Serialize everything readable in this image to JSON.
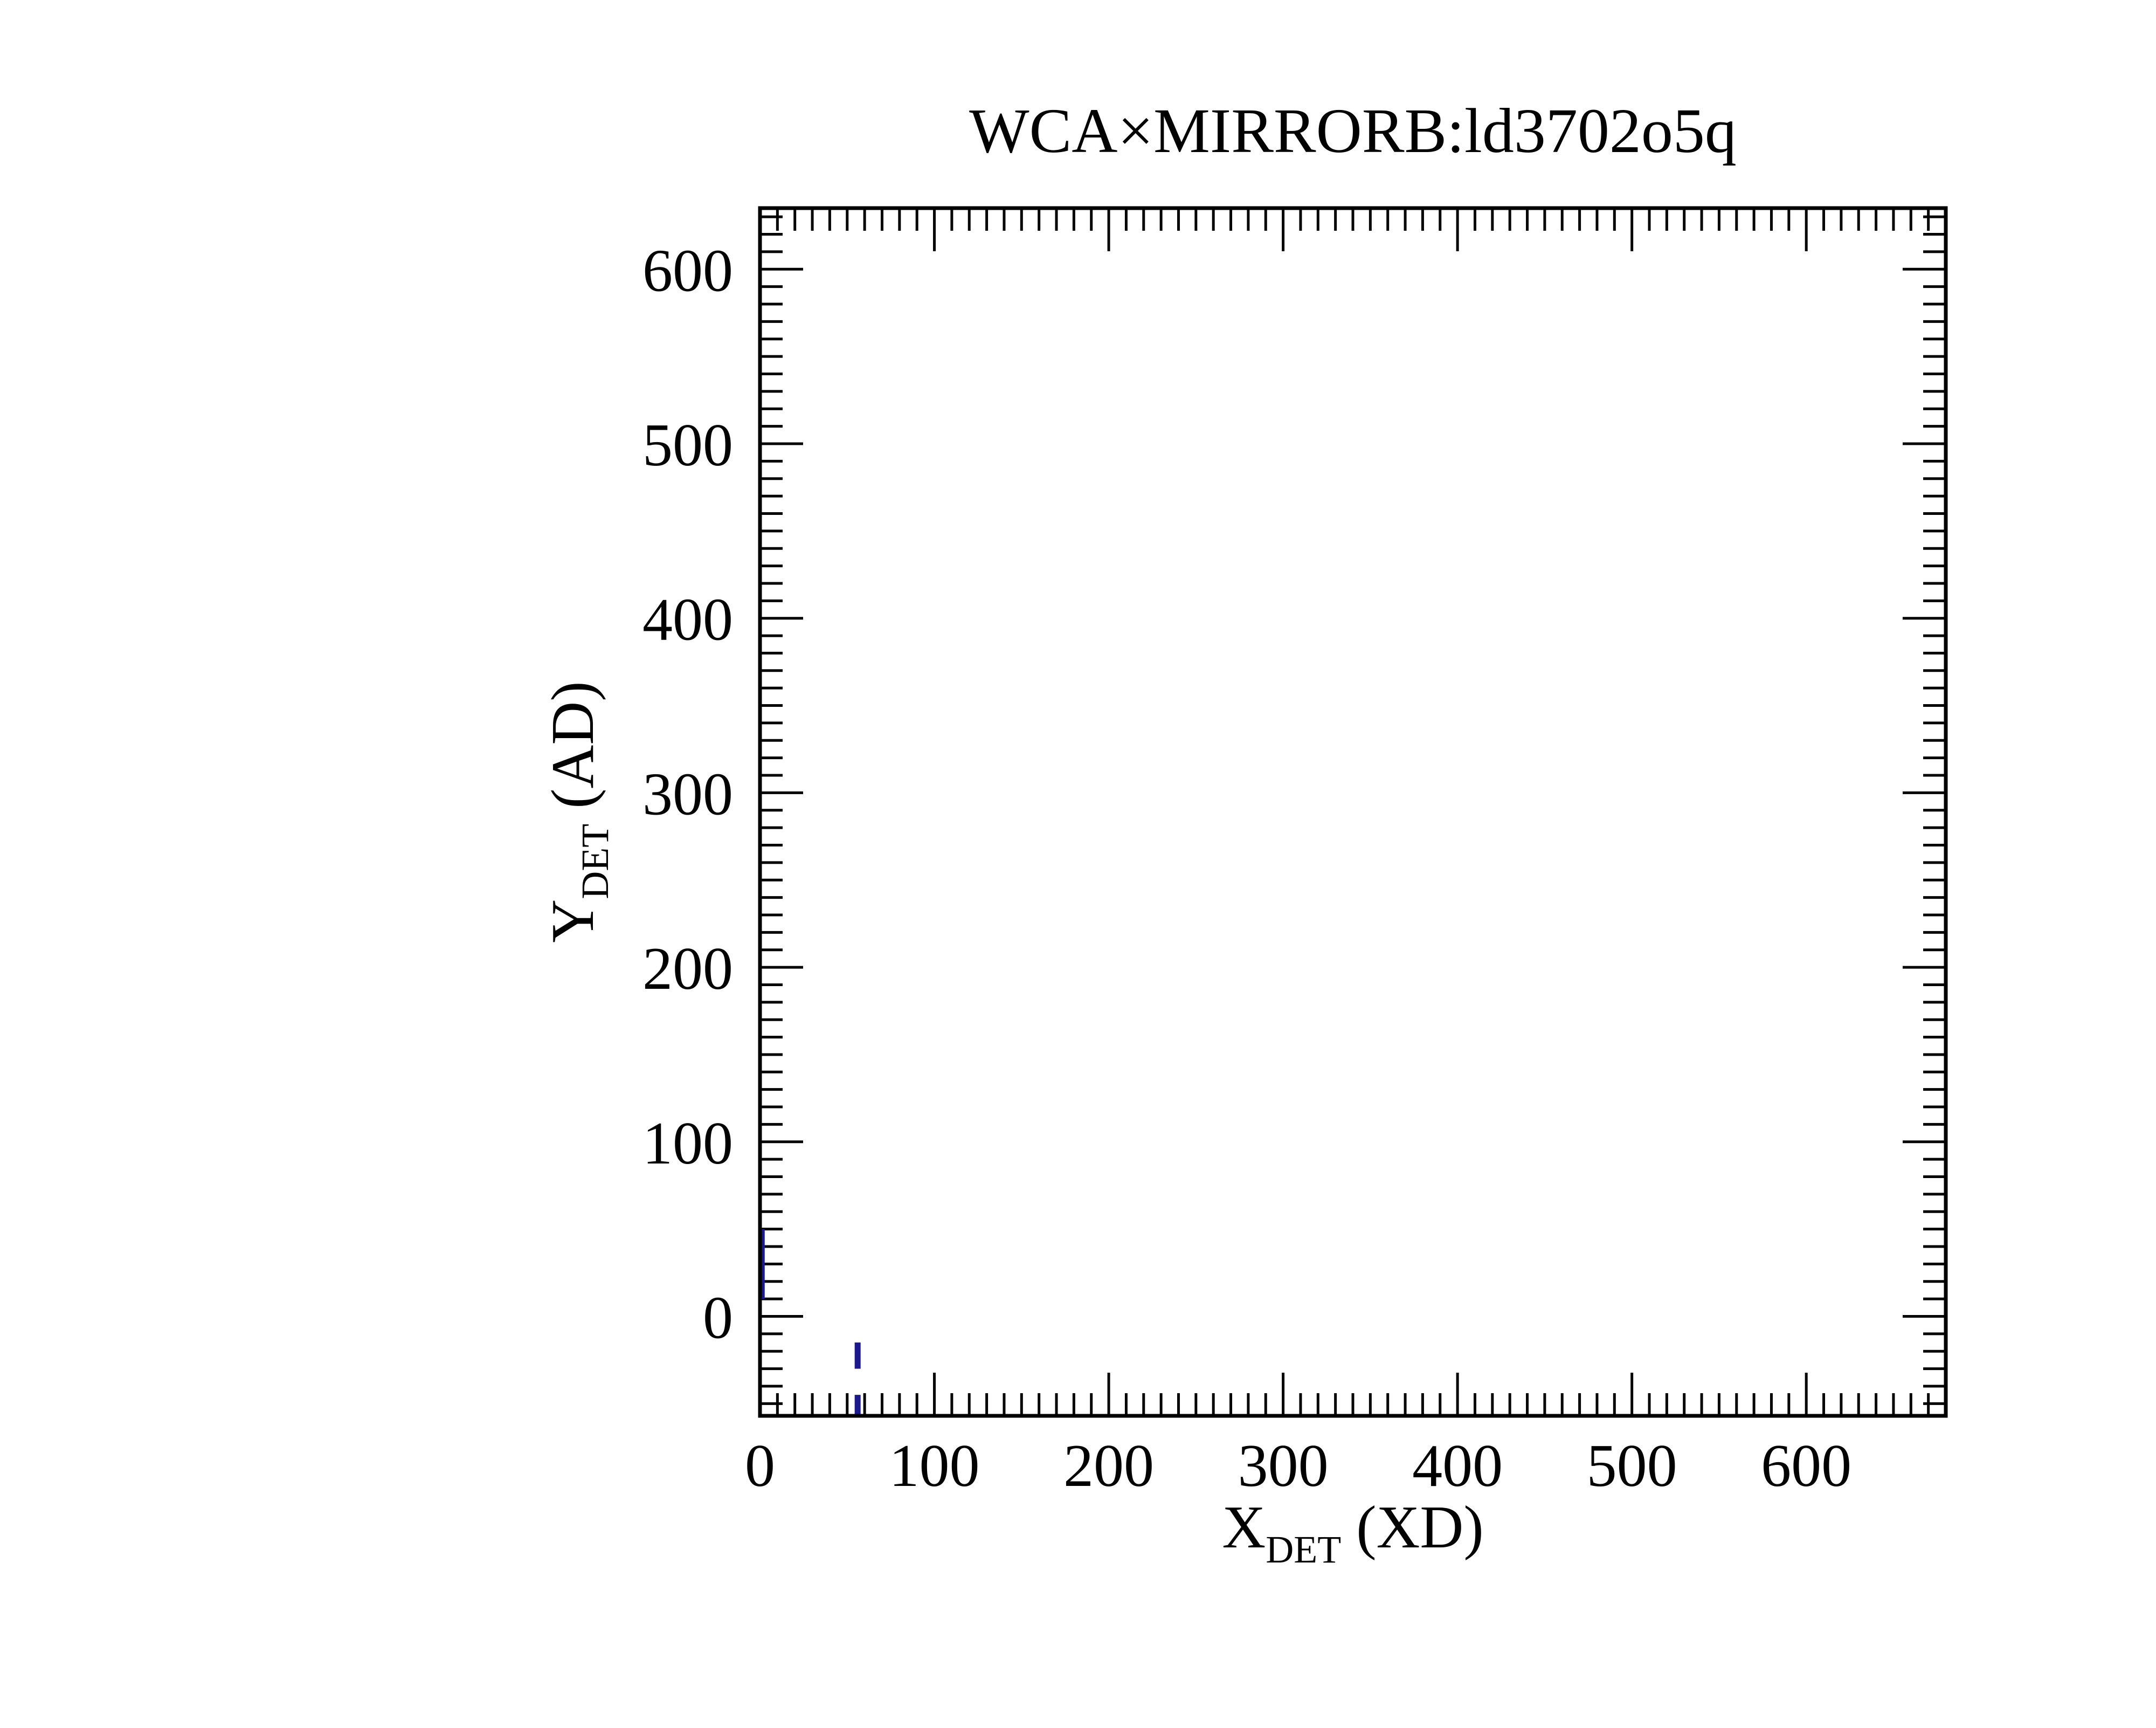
{
  "chart_data": {
    "type": "scatter",
    "title": "WCA×MIRRORB:ld3702o5q",
    "xlabel": {
      "main": "X",
      "sub": "DET",
      "rest": " (XD)"
    },
    "ylabel": {
      "main": "Y",
      "sub": "DET",
      "rest": " (AD)"
    },
    "xlim": [
      0,
      680
    ],
    "ylim": [
      -57,
      635
    ],
    "x_ticks": [
      0,
      100,
      200,
      300,
      400,
      500,
      600
    ],
    "y_ticks": [
      0,
      100,
      200,
      300,
      400,
      500,
      600
    ],
    "x_tick_labels": [
      "0",
      "100",
      "200",
      "300",
      "400",
      "500",
      "600"
    ],
    "y_tick_labels": [
      "0",
      "100",
      "200",
      "300",
      "400",
      "500",
      "600"
    ],
    "x_minor_step": 10,
    "y_minor_step": 10,
    "grid": false,
    "legend": "none",
    "series": [
      {
        "color": "#1a1a8c",
        "segments": [
          {
            "x": 1,
            "y0": 10,
            "y1": 50
          },
          {
            "x": 56,
            "y0": -30,
            "y1": -15
          },
          {
            "x": 56,
            "y0": -57,
            "y1": -45
          }
        ]
      }
    ]
  }
}
